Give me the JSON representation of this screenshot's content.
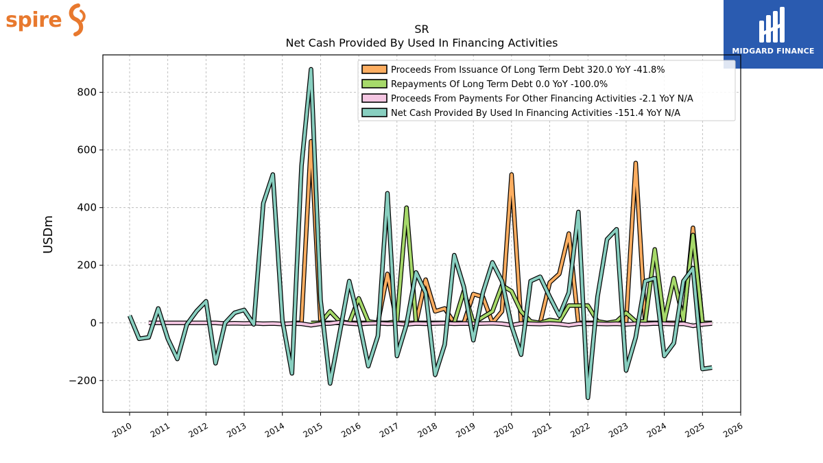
{
  "brand": {
    "name": "spire",
    "icon": "spire-swirl-icon",
    "color": "#e8792e"
  },
  "partner": {
    "name": "MIDGARD FINANCE",
    "icon": "midgard-logo-icon",
    "color": "#2a5bb0"
  },
  "chart_data": {
    "type": "line",
    "title": "SR",
    "subtitle": "Net Cash Provided By Used In Financing Activities",
    "ylabel": "USDm",
    "xlabel": "",
    "xlim": [
      2009.3,
      2026.0
    ],
    "ylim": [
      -310,
      930
    ],
    "xticks": [
      2010,
      2011,
      2012,
      2013,
      2014,
      2015,
      2016,
      2017,
      2018,
      2019,
      2020,
      2021,
      2022,
      2023,
      2024,
      2025,
      2026
    ],
    "yticks": [
      -200,
      0,
      200,
      400,
      600,
      800
    ],
    "ytick_labels": [
      "−200",
      "0",
      "200",
      "400",
      "600",
      "800"
    ],
    "grid": true,
    "legend_position": "top-right",
    "series": [
      {
        "name": "Proceeds From Issuance Of Long Term Debt  320.0 YoY -41.8%",
        "color": "#fdae61",
        "x": [
          2014.25,
          2014.5,
          2014.75,
          2015.0,
          2015.25,
          2015.5,
          2015.75,
          2016.0,
          2016.25,
          2016.5,
          2016.75,
          2017.0,
          2017.25,
          2017.5,
          2017.75,
          2018.0,
          2018.25,
          2018.5,
          2018.75,
          2019.0,
          2019.25,
          2019.5,
          2019.75,
          2020.0,
          2020.25,
          2020.5,
          2020.75,
          2021.0,
          2021.25,
          2021.5,
          2021.75,
          2022.0,
          2022.25,
          2022.5,
          2022.75,
          2023.0,
          2023.25,
          2023.5,
          2023.75,
          2024.0,
          2024.25,
          2024.5,
          2024.75,
          2025.0,
          2025.25
        ],
        "y": [
          0,
          0,
          630,
          0,
          0,
          0,
          0,
          0,
          0,
          0,
          170,
          0,
          0,
          0,
          150,
          40,
          50,
          0,
          0,
          100,
          90,
          0,
          40,
          515,
          0,
          0,
          0,
          140,
          170,
          310,
          0,
          0,
          0,
          0,
          0,
          0,
          555,
          0,
          0,
          0,
          0,
          0,
          330,
          0,
          0
        ]
      },
      {
        "name": "Repayments Of Long Term Debt  0.0 YoY -100.0%",
        "color": "#a6d96a",
        "x": [
          2014.75,
          2015.0,
          2015.25,
          2015.5,
          2015.75,
          2016.0,
          2016.25,
          2016.5,
          2016.75,
          2017.0,
          2017.25,
          2017.5,
          2017.75,
          2018.0,
          2018.25,
          2018.5,
          2018.75,
          2019.0,
          2019.25,
          2019.5,
          2019.75,
          2020.0,
          2020.25,
          2020.5,
          2020.75,
          2021.0,
          2021.25,
          2021.5,
          2021.75,
          2022.0,
          2022.25,
          2022.5,
          2022.75,
          2023.0,
          2023.25,
          2023.5,
          2023.75,
          2024.0,
          2024.25,
          2024.5,
          2024.75,
          2025.0,
          2025.25
        ],
        "y": [
          0,
          0,
          40,
          5,
          0,
          85,
          5,
          0,
          0,
          5,
          400,
          0,
          0,
          0,
          0,
          0,
          110,
          0,
          20,
          40,
          130,
          110,
          40,
          5,
          0,
          10,
          5,
          60,
          60,
          60,
          5,
          0,
          5,
          35,
          5,
          5,
          255,
          5,
          155,
          10,
          305,
          0,
          0
        ]
      },
      {
        "name": "Proceeds From Payments For Other Financing Activities  -2.1 YoY N/A",
        "color": "#f4c6e2",
        "x": [
          2010.5,
          2010.75,
          2011.0,
          2011.25,
          2011.5,
          2011.75,
          2012.0,
          2012.25,
          2012.5,
          2012.75,
          2013.0,
          2013.25,
          2013.5,
          2013.75,
          2014.0,
          2014.25,
          2014.5,
          2014.75,
          2015.0,
          2015.25,
          2015.5,
          2015.75,
          2016.0,
          2016.25,
          2016.5,
          2016.75,
          2017.0,
          2017.25,
          2017.5,
          2017.75,
          2018.0,
          2018.25,
          2018.5,
          2018.75,
          2019.0,
          2019.25,
          2019.5,
          2019.75,
          2020.0,
          2020.25,
          2020.5,
          2020.75,
          2021.0,
          2021.25,
          2021.5,
          2021.75,
          2022.0,
          2022.25,
          2022.5,
          2022.75,
          2023.0,
          2023.25,
          2023.5,
          2023.75,
          2024.0,
          2024.25,
          2024.5,
          2024.75,
          2025.0,
          2025.25
        ],
        "y": [
          0,
          0,
          0,
          0,
          0,
          0,
          0,
          0,
          -2,
          -1,
          -2,
          -1,
          -3,
          -2,
          -4,
          -2,
          -3,
          -8,
          -3,
          -2,
          2,
          -2,
          -4,
          -2,
          -1,
          -3,
          -2,
          -5,
          -2,
          -3,
          -2,
          -1,
          -3,
          -2,
          -3,
          -2,
          -1,
          -3,
          -8,
          -2,
          -3,
          -4,
          -2,
          -4,
          -8,
          -3,
          -3,
          -3,
          -4,
          -3,
          -5,
          -3,
          -4,
          -2,
          -3,
          -4,
          -3,
          -10,
          -5,
          -2
        ]
      },
      {
        "name": "Net Cash Provided By Used In Financing Activities  -151.4 YoY N/A",
        "color": "#88cfc0",
        "x": [
          2010.0,
          2010.25,
          2010.5,
          2010.75,
          2011.0,
          2011.25,
          2011.5,
          2011.75,
          2012.0,
          2012.25,
          2012.5,
          2012.75,
          2013.0,
          2013.25,
          2013.5,
          2013.75,
          2014.0,
          2014.25,
          2014.5,
          2014.75,
          2015.0,
          2015.25,
          2015.5,
          2015.75,
          2016.0,
          2016.25,
          2016.5,
          2016.75,
          2017.0,
          2017.25,
          2017.5,
          2017.75,
          2018.0,
          2018.25,
          2018.5,
          2018.75,
          2019.0,
          2019.25,
          2019.5,
          2019.75,
          2020.0,
          2020.25,
          2020.5,
          2020.75,
          2021.0,
          2021.25,
          2021.5,
          2021.75,
          2022.0,
          2022.25,
          2022.5,
          2022.75,
          2023.0,
          2023.25,
          2023.5,
          2023.75,
          2024.0,
          2024.25,
          2024.5,
          2024.75,
          2025.0,
          2025.25
        ],
        "y": [
          25,
          -55,
          -50,
          50,
          -55,
          -125,
          -5,
          40,
          75,
          -140,
          0,
          35,
          45,
          -5,
          415,
          515,
          10,
          -175,
          545,
          880,
          80,
          -210,
          -35,
          145,
          10,
          -150,
          -45,
          450,
          -115,
          -5,
          175,
          105,
          -180,
          -75,
          235,
          125,
          -60,
          105,
          210,
          145,
          -10,
          -110,
          145,
          160,
          90,
          25,
          105,
          385,
          -260,
          90,
          290,
          325,
          -165,
          -50,
          145,
          155,
          -115,
          -70,
          145,
          190,
          -160,
          -155
        ]
      }
    ]
  }
}
